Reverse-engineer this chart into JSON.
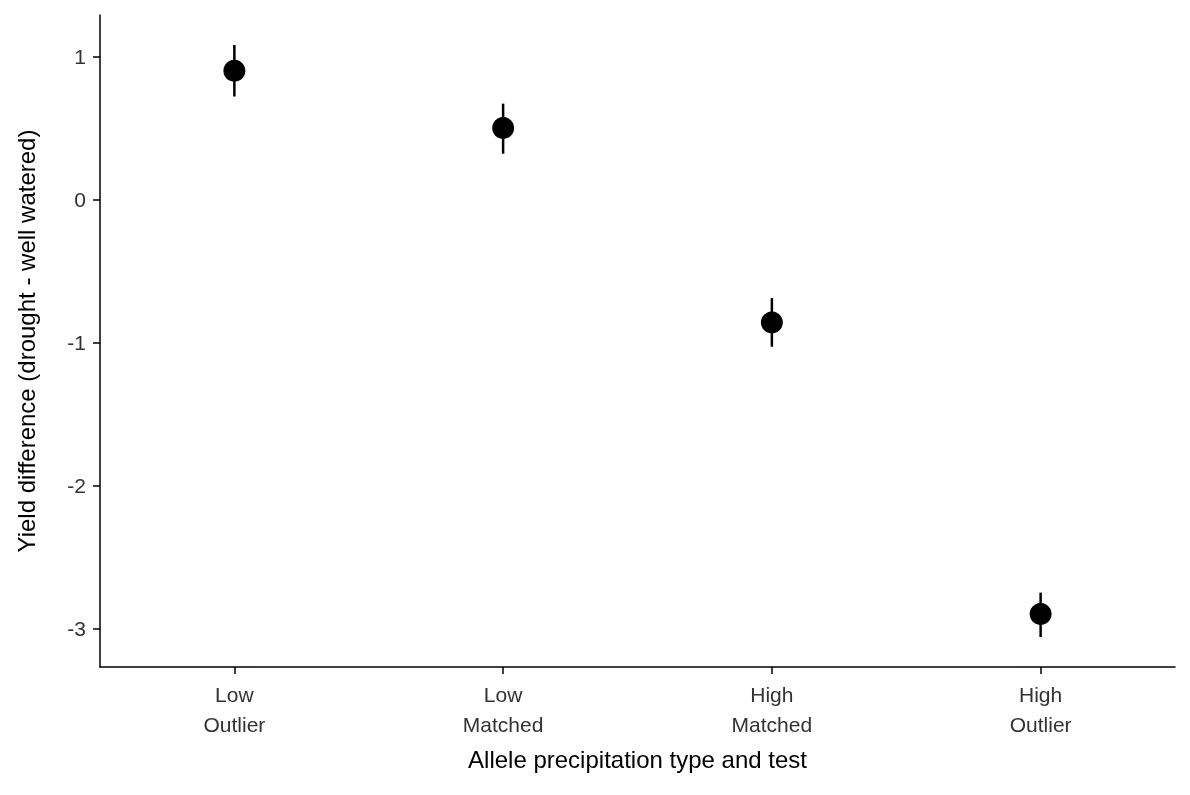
{
  "chart_data": {
    "type": "scatter",
    "xlabel": "Allele precipitation type and test",
    "ylabel": "Yield difference (drought - well watered)",
    "categories": [
      "Low\nOutlier",
      "Low\nMatched",
      "High\nMatched",
      "High\nOutlier"
    ],
    "series": [
      {
        "color": "#000000",
        "values": [
          0.9,
          0.5,
          -0.86,
          -2.9
        ],
        "errors": [
          [
            0.72,
            1.08
          ],
          [
            0.32,
            0.67
          ],
          [
            -1.03,
            -0.69
          ],
          [
            -3.06,
            -2.75
          ]
        ]
      }
    ],
    "ylim": [
      -3.27,
      1.29
    ],
    "yticks": [
      -3,
      -2,
      -1,
      0,
      1
    ],
    "grid": false,
    "marker": "circle"
  }
}
